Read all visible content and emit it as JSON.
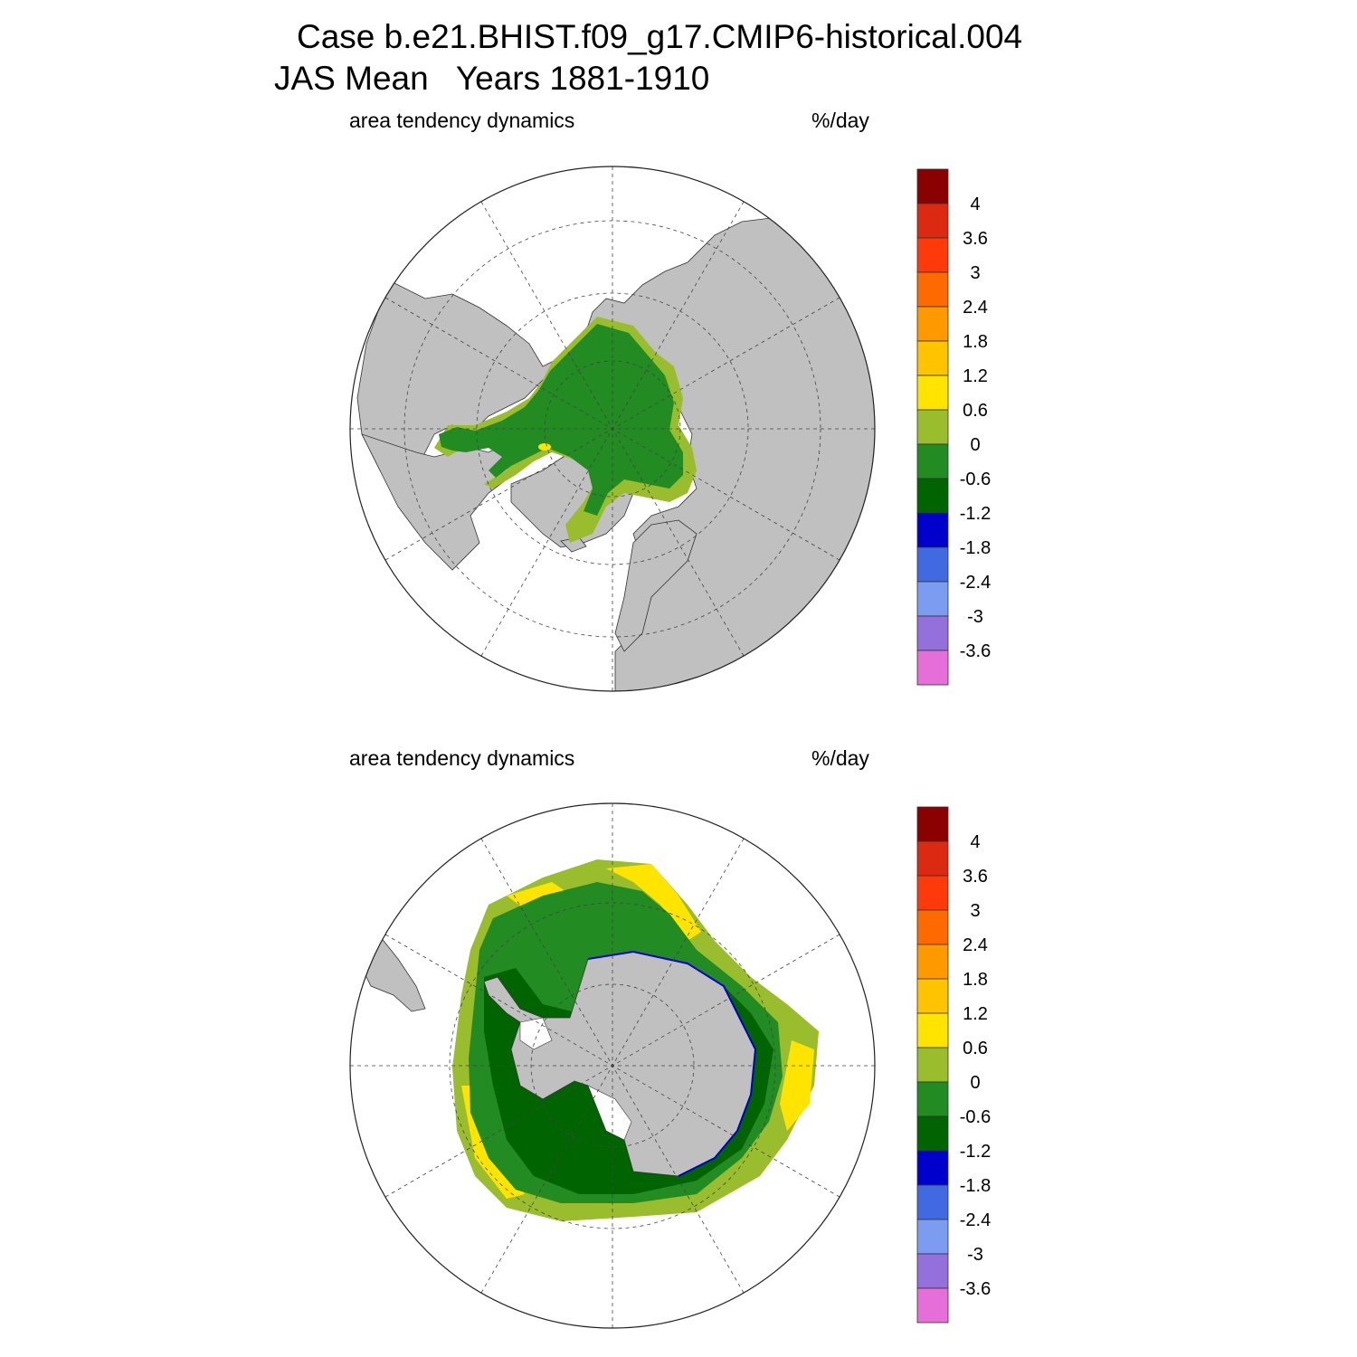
{
  "title": {
    "case_line": "Case b.e21.BHIST.f09_g17.CMIP6-historical.004",
    "mean_line": "JAS Mean   Years 1881-1910"
  },
  "panels": [
    {
      "id": "north",
      "left_label": "area tendency dynamics",
      "right_label": "%/day"
    },
    {
      "id": "south",
      "left_label": "area tendency dynamics",
      "right_label": "%/day"
    }
  ],
  "colorbar": {
    "labels": [
      "4",
      "3.6",
      "3",
      "2.4",
      "1.8",
      "1.2",
      "0.6",
      "0",
      "-0.6",
      "-1.2",
      "-1.8",
      "-2.4",
      "-3",
      "-3.6"
    ],
    "colors": [
      "#8B0000",
      "#DC2A12",
      "#FF3A0A",
      "#FF6A00",
      "#FF9900",
      "#FFC300",
      "#FFE400",
      "#9ABD2E",
      "#228B22",
      "#006400",
      "#0000CD",
      "#4169E1",
      "#7B9CF0",
      "#9370DB",
      "#E66ED9"
    ]
  },
  "colors": {
    "land": "#C0C0C0",
    "ocean": "#FFFFFF",
    "near_zero_positive": "#9ABD2E",
    "near_zero_negative": "#228B22",
    "moderate_negative": "#006400",
    "positive_fringe": "#FFE400"
  }
}
